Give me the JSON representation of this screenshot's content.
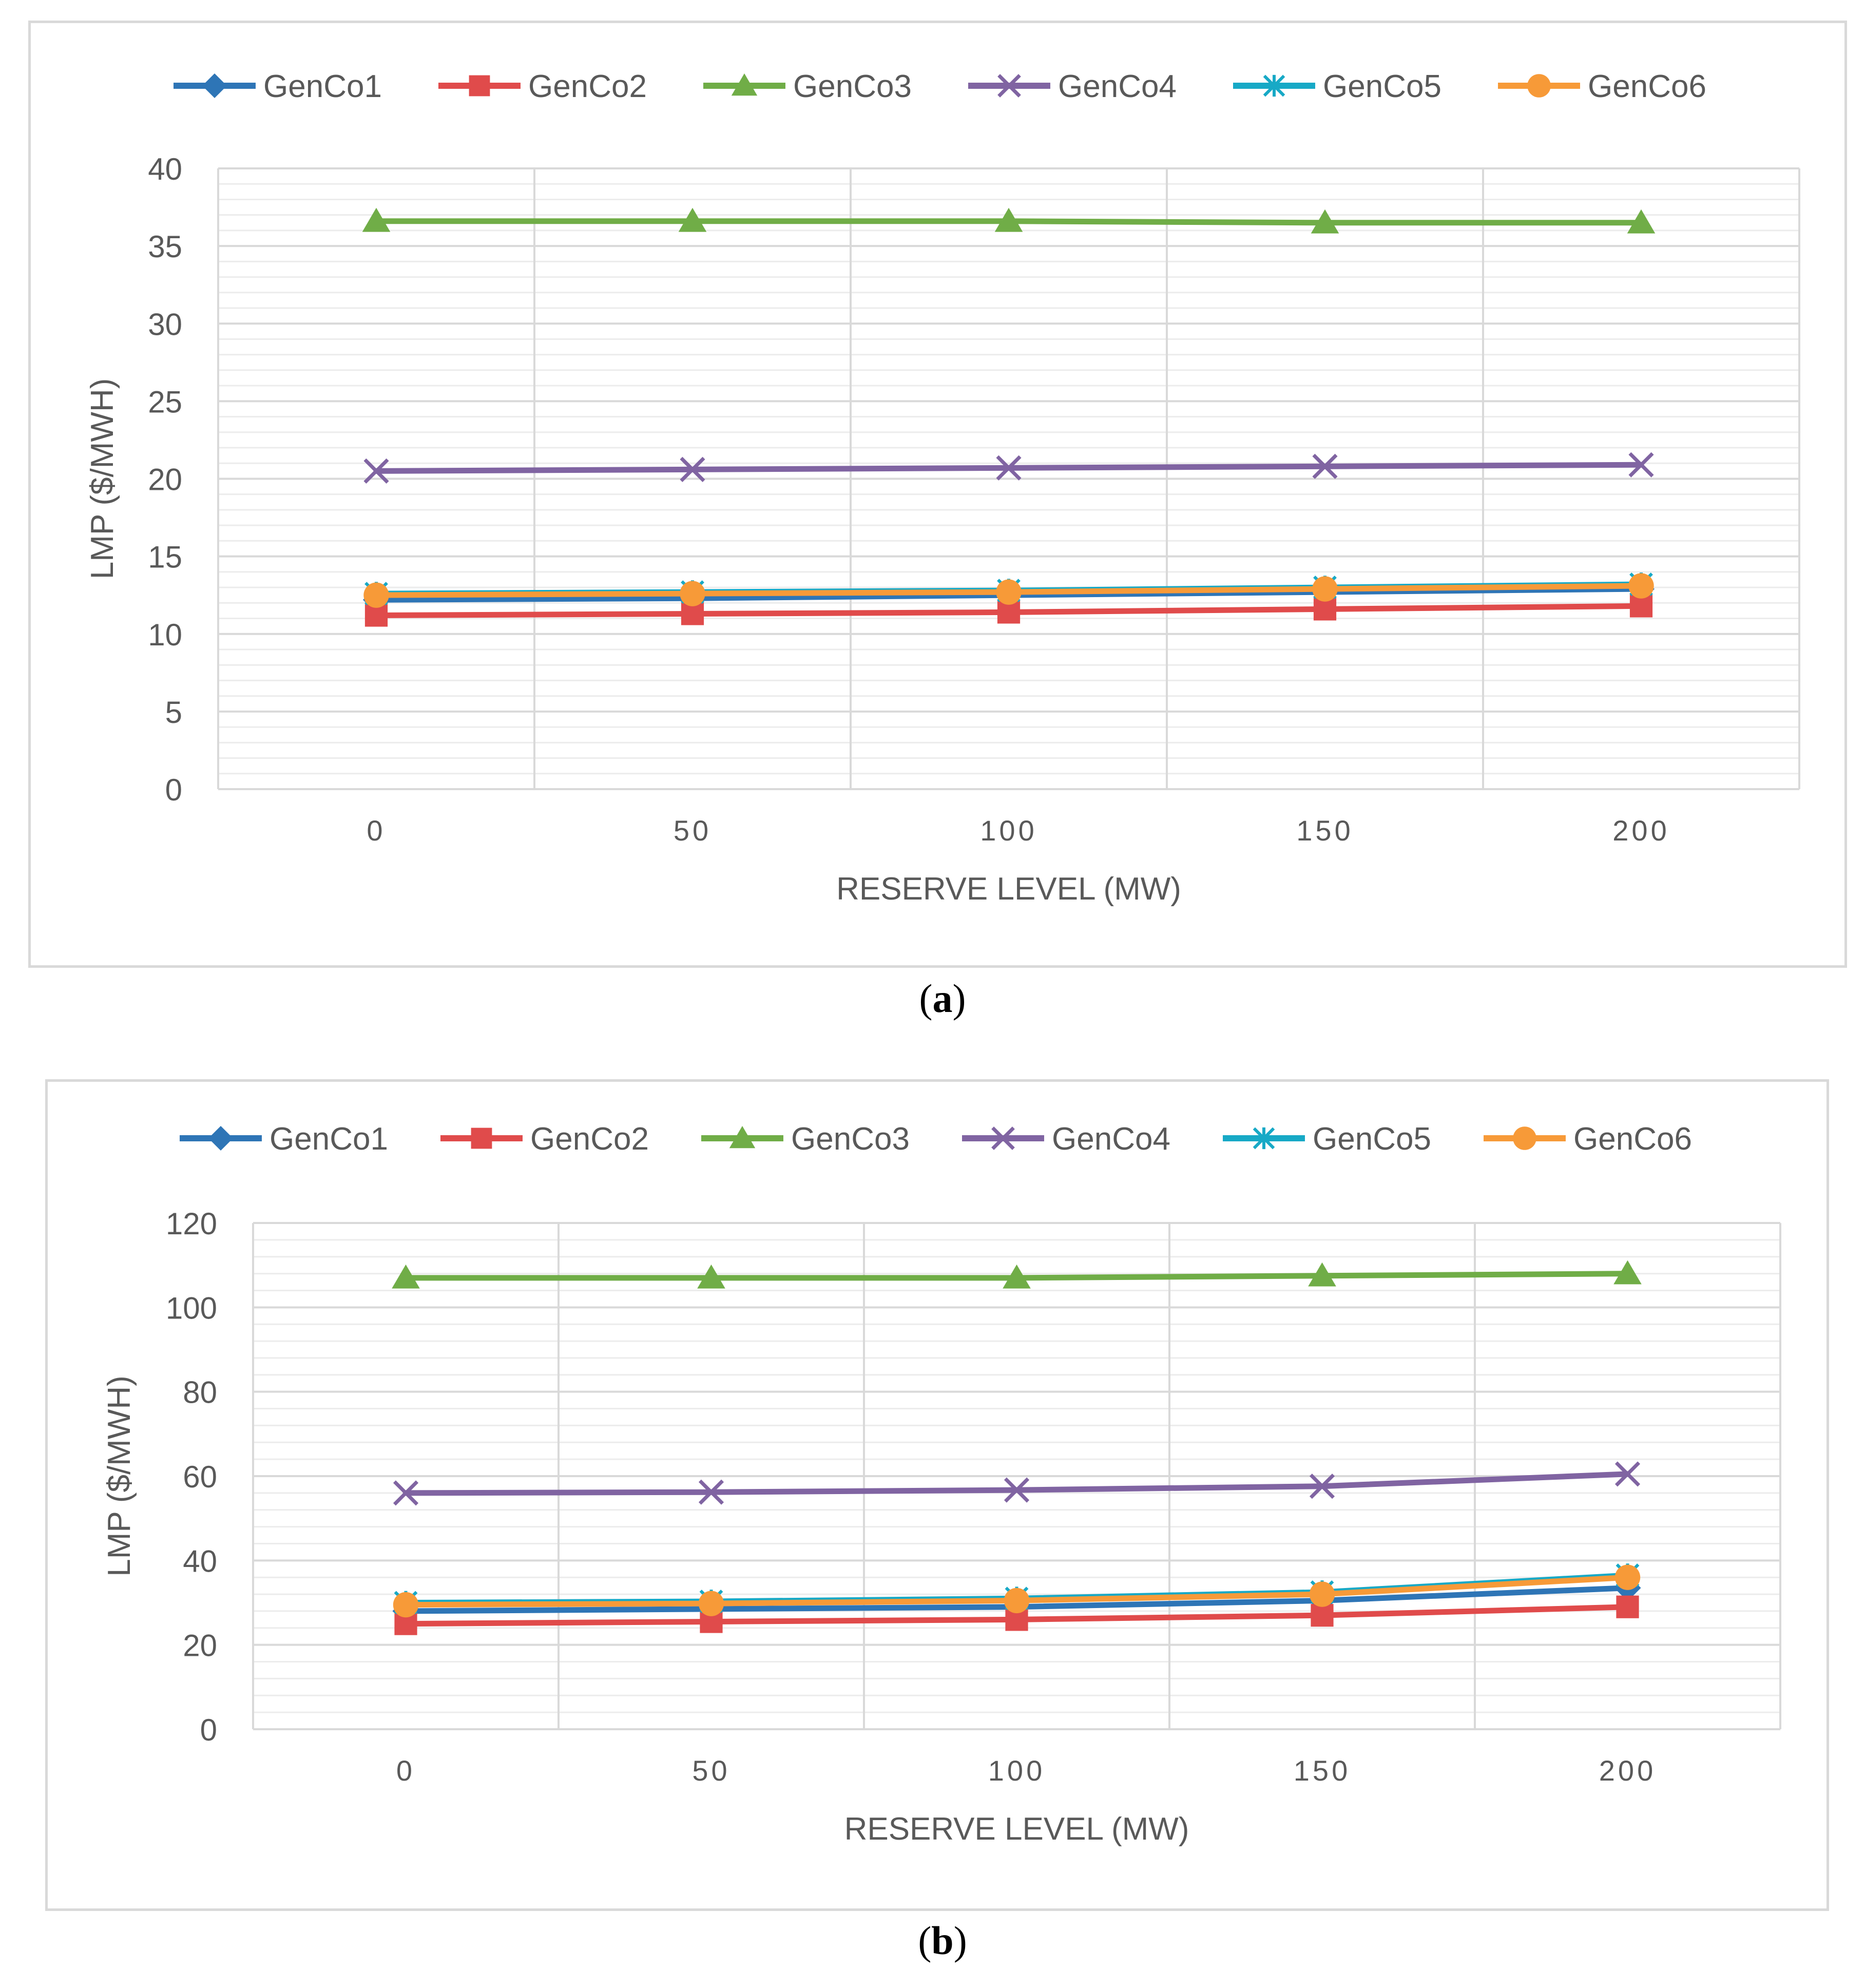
{
  "chart_data": [
    {
      "type": "line",
      "panel_label": "a",
      "title": "",
      "xlabel": "RESERVE LEVEL (MW)",
      "ylabel": "LMP ($/MWH)",
      "categories": [
        "0",
        "50",
        "100",
        "150",
        "200"
      ],
      "ylim": [
        0,
        40
      ],
      "yticks": [
        "0",
        "5",
        "10",
        "15",
        "20",
        "25",
        "30",
        "35",
        "40"
      ],
      "legend_position": "top",
      "series": [
        {
          "name": "GenCo1",
          "marker": "diamond",
          "color": "#2e75b6",
          "values": [
            12.2,
            12.3,
            12.5,
            12.7,
            12.9
          ]
        },
        {
          "name": "GenCo2",
          "marker": "square",
          "color": "#e04b4b",
          "values": [
            11.2,
            11.3,
            11.4,
            11.6,
            11.8
          ]
        },
        {
          "name": "GenCo3",
          "marker": "triangle",
          "color": "#70ad47",
          "values": [
            36.6,
            36.6,
            36.6,
            36.5,
            36.5
          ]
        },
        {
          "name": "GenCo4",
          "marker": "x",
          "color": "#8064a2",
          "values": [
            20.5,
            20.6,
            20.7,
            20.8,
            20.9
          ]
        },
        {
          "name": "GenCo5",
          "marker": "star",
          "color": "#17a9c6",
          "values": [
            12.6,
            12.7,
            12.8,
            13.0,
            13.2
          ]
        },
        {
          "name": "GenCo6",
          "marker": "circle",
          "color": "#f79a38",
          "values": [
            12.5,
            12.6,
            12.7,
            12.9,
            13.1
          ]
        }
      ]
    },
    {
      "type": "line",
      "panel_label": "b",
      "title": "",
      "xlabel": "RESERVE LEVEL (MW)",
      "ylabel": "LMP ($/MWH)",
      "categories": [
        "0",
        "50",
        "100",
        "150",
        "200"
      ],
      "ylim": [
        0,
        120
      ],
      "yticks": [
        "0",
        "20",
        "40",
        "60",
        "80",
        "100",
        "120"
      ],
      "legend_position": "top",
      "series": [
        {
          "name": "GenCo1",
          "marker": "diamond",
          "color": "#2e75b6",
          "values": [
            28,
            28.5,
            29,
            30.5,
            33.5
          ]
        },
        {
          "name": "GenCo2",
          "marker": "square",
          "color": "#e04b4b",
          "values": [
            25,
            25.5,
            26,
            27,
            29
          ]
        },
        {
          "name": "GenCo3",
          "marker": "triangle",
          "color": "#70ad47",
          "values": [
            107,
            107,
            107,
            107.5,
            108
          ]
        },
        {
          "name": "GenCo4",
          "marker": "x",
          "color": "#8064a2",
          "values": [
            56,
            56.2,
            56.7,
            57.6,
            60.5
          ]
        },
        {
          "name": "GenCo5",
          "marker": "star",
          "color": "#17a9c6",
          "values": [
            30,
            30.3,
            31,
            32.5,
            36.5
          ]
        },
        {
          "name": "GenCo6",
          "marker": "circle",
          "color": "#f79a38",
          "values": [
            29.5,
            29.8,
            30.5,
            32,
            36
          ]
        }
      ]
    }
  ],
  "captions": {
    "a": "a",
    "b": "b"
  }
}
